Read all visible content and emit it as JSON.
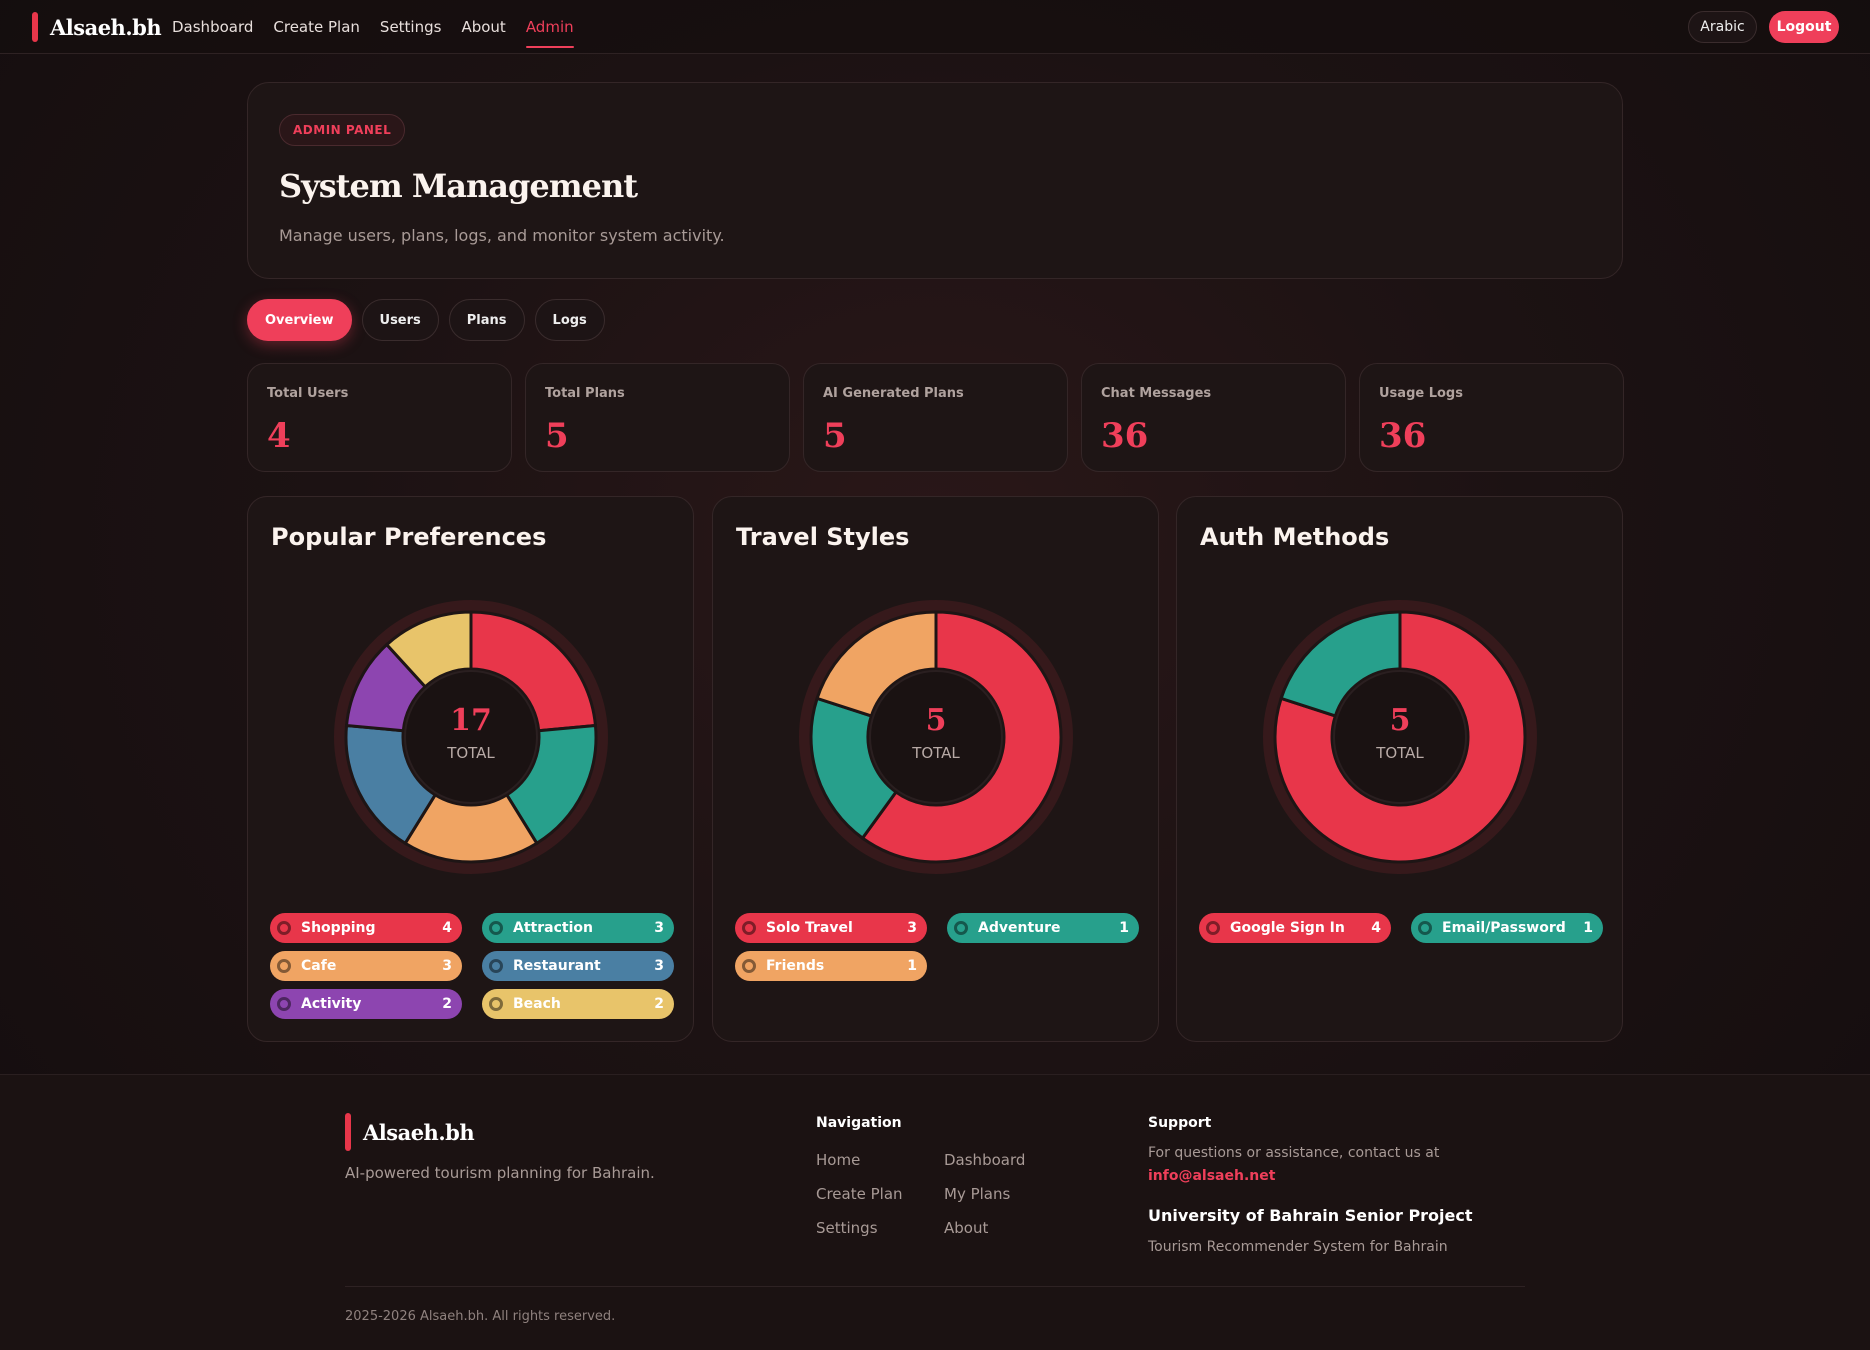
{
  "nav": {
    "brand": "Alsaeh.bh",
    "links": [
      "Dashboard",
      "Create Plan",
      "Settings",
      "About",
      "Admin"
    ],
    "lang_button": "Arabic",
    "logout_button": "Logout"
  },
  "hero": {
    "badge": "ADMIN PANEL",
    "title": "System Management",
    "subtitle": "Manage users, plans, logs, and monitor system activity."
  },
  "tabs": [
    "Overview",
    "Users",
    "Plans",
    "Logs"
  ],
  "stats": [
    {
      "label": "Total Users",
      "value": "4"
    },
    {
      "label": "Total Plans",
      "value": "5"
    },
    {
      "label": "AI Generated Plans",
      "value": "5"
    },
    {
      "label": "Chat Messages",
      "value": "36"
    },
    {
      "label": "Usage Logs",
      "value": "36"
    }
  ],
  "chart_data": [
    {
      "type": "pie",
      "title": "Popular Preferences",
      "center_value": "17",
      "center_label": "TOTAL",
      "categories": [
        "Shopping",
        "Attraction",
        "Cafe",
        "Restaurant",
        "Activity",
        "Beach"
      ],
      "values": [
        4,
        3,
        3,
        3,
        2,
        2
      ],
      "colors": [
        "#e8364a",
        "#27a08c",
        "#f0a463",
        "#4a7fa3",
        "#8d45b0",
        "#e8c46a"
      ]
    },
    {
      "type": "pie",
      "title": "Travel Styles",
      "center_value": "5",
      "center_label": "TOTAL",
      "categories": [
        "Solo Travel",
        "Adventure",
        "Friends"
      ],
      "values": [
        3,
        1,
        1
      ],
      "colors": [
        "#e8364a",
        "#27a08c",
        "#f0a463"
      ]
    },
    {
      "type": "pie",
      "title": "Auth Methods",
      "center_value": "5",
      "center_label": "TOTAL",
      "categories": [
        "Google Sign In",
        "Email/Password"
      ],
      "values": [
        4,
        1
      ],
      "colors": [
        "#e8364a",
        "#27a08c"
      ]
    }
  ],
  "footer": {
    "brand": "Alsaeh.bh",
    "tagline": "AI-powered tourism planning for Bahrain.",
    "nav_heading": "Navigation",
    "nav_links": [
      "Home",
      "Dashboard",
      "Create Plan",
      "My Plans",
      "Settings",
      "About"
    ],
    "support_heading": "Support",
    "support_text": "For questions or assistance, contact us at",
    "support_email": "info@alsaeh.net",
    "university": "University of Bahrain Senior Project",
    "project": "Tourism Recommender System for Bahrain",
    "copyright": "2025-2026 Alsaeh.bh. All rights reserved."
  }
}
